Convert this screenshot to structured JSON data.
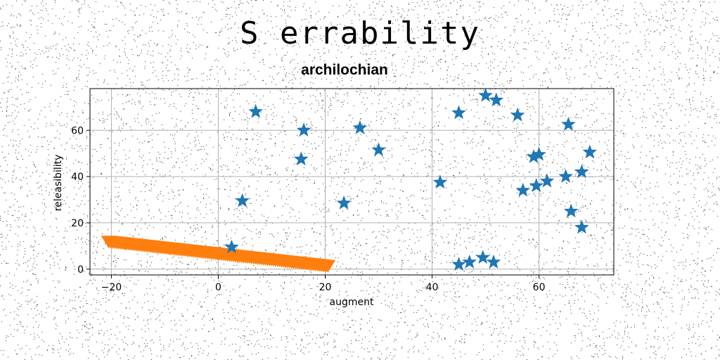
{
  "title": "S errability",
  "subtitle": "archilochian",
  "chart_data": {
    "type": "scatter",
    "xlabel": "augment",
    "ylabel": "releasibility",
    "xlim": [
      -24,
      74
    ],
    "ylim": [
      -2.5,
      78
    ],
    "xticks": [
      -20,
      0,
      20,
      40,
      60
    ],
    "yticks": [
      0,
      20,
      40,
      60
    ],
    "grid": true,
    "colors": {
      "stars": "#1f77b4",
      "triangles": "#ff7f0e"
    },
    "series": [
      {
        "marker": "star",
        "color": "#1f77b4",
        "points": [
          [
            7,
            68
          ],
          [
            16,
            60
          ],
          [
            15.5,
            47.5
          ],
          [
            4.5,
            29.5
          ],
          [
            2.5,
            9.5
          ],
          [
            23.5,
            28.5
          ],
          [
            26.5,
            61
          ],
          [
            30,
            51.5
          ],
          [
            41.5,
            37.5
          ],
          [
            45,
            67.5
          ],
          [
            50,
            75
          ],
          [
            52,
            73
          ],
          [
            56,
            66.5
          ],
          [
            45,
            2
          ],
          [
            47,
            3
          ],
          [
            49.5,
            5
          ],
          [
            51.5,
            3
          ],
          [
            57,
            34
          ],
          [
            59,
            48.5
          ],
          [
            59.5,
            36
          ],
          [
            60,
            49.5
          ],
          [
            61.5,
            38
          ],
          [
            65,
            40
          ],
          [
            65.5,
            62.5
          ],
          [
            66,
            25
          ],
          [
            68,
            18
          ],
          [
            68,
            42
          ],
          [
            69.5,
            50.5
          ]
        ]
      },
      {
        "marker": "triangle-down",
        "color": "#ff7f0e",
        "x_start": -20.5,
        "x_end": 20.5,
        "y_start": 12,
        "y_end": 1.5,
        "count": 110
      }
    ]
  }
}
